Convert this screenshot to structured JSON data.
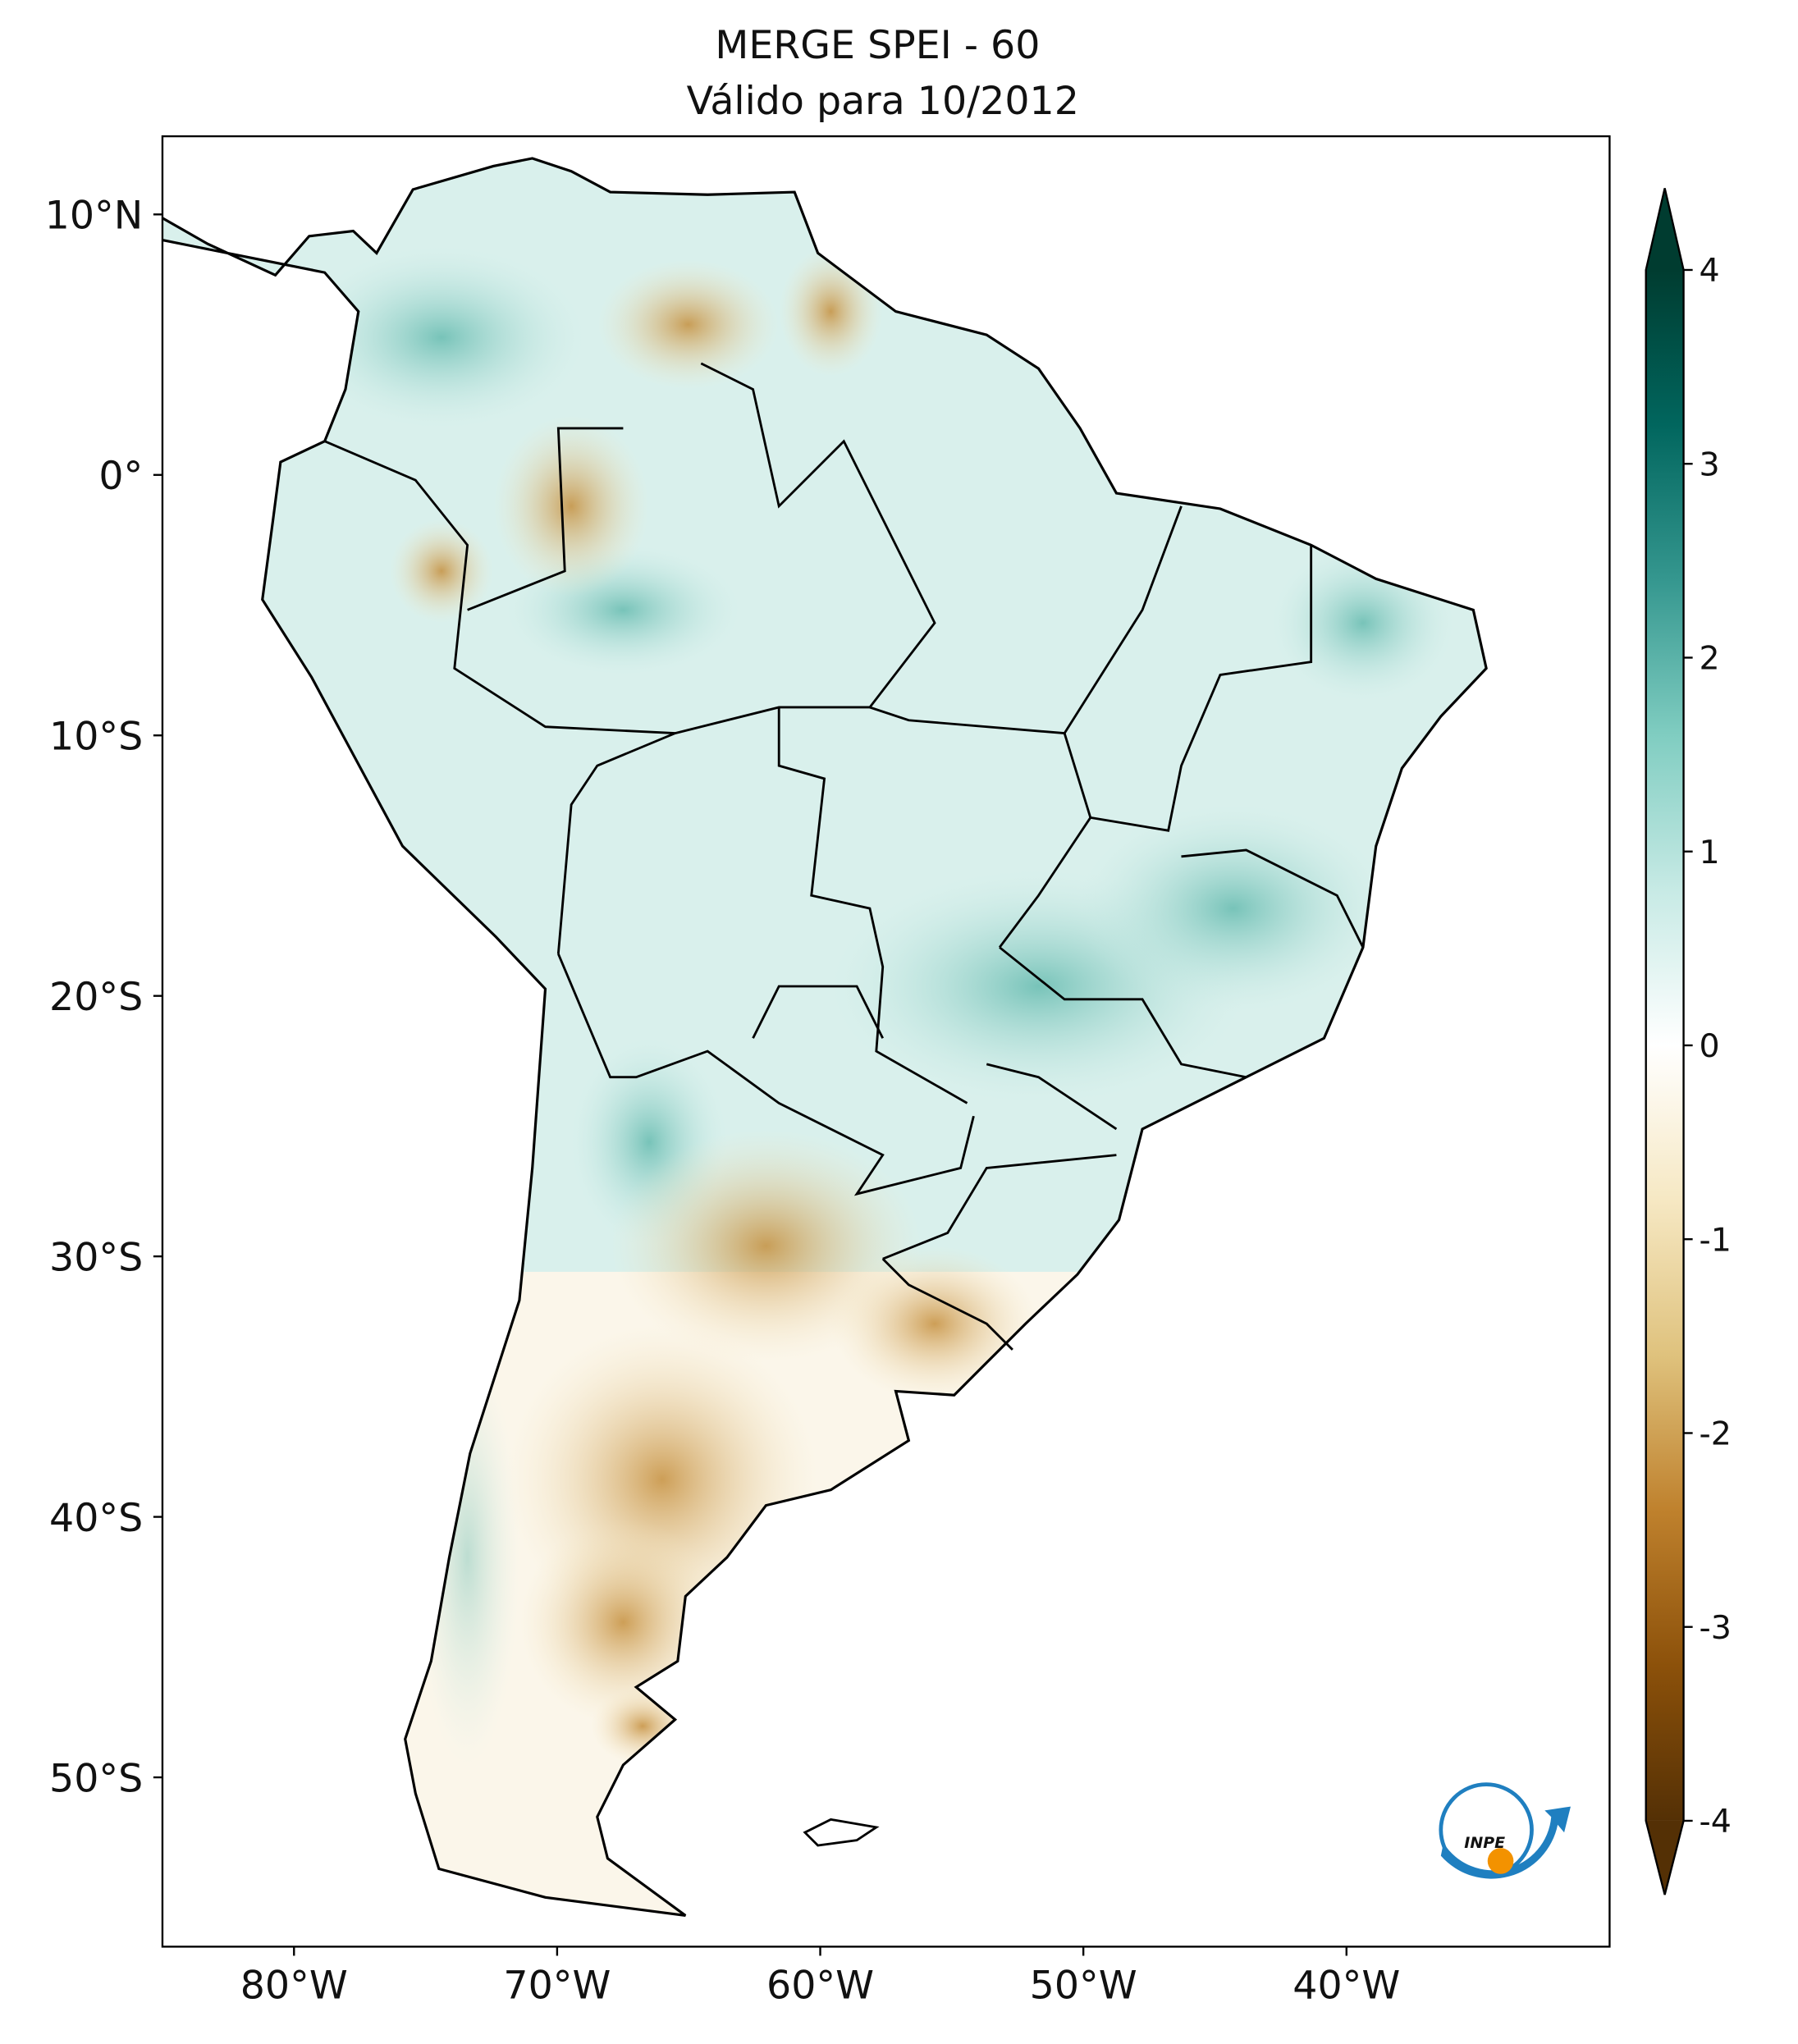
{
  "map": {
    "title": "MERGE   SPEI - 60",
    "subtitle": "Válido para 10/2012",
    "xlim": [
      -85,
      -30
    ],
    "ylim": [
      -56.5,
      13
    ],
    "xticks": [
      {
        "value": -80,
        "label": "80°W"
      },
      {
        "value": -70,
        "label": "70°W"
      },
      {
        "value": -60,
        "label": "60°W"
      },
      {
        "value": -50,
        "label": "50°W"
      },
      {
        "value": -40,
        "label": "40°W"
      }
    ],
    "yticks": [
      {
        "value": 10,
        "label": "10°N"
      },
      {
        "value": 0,
        "label": "0°"
      },
      {
        "value": -10,
        "label": "10°S"
      },
      {
        "value": -20,
        "label": "20°S"
      },
      {
        "value": -30,
        "label": "30°S"
      },
      {
        "value": -40,
        "label": "40°S"
      },
      {
        "value": -50,
        "label": "50°S"
      }
    ],
    "colorbar": {
      "lim": [
        -4,
        4
      ],
      "ticks": [
        -4,
        -3,
        -2,
        -1,
        0,
        1,
        2,
        3,
        4
      ],
      "colors": [
        "#543005",
        "#8c510a",
        "#bf812d",
        "#dfc27d",
        "#f6e8c3",
        "#ffffff",
        "#c7eae5",
        "#80cdc1",
        "#35978f",
        "#01665e",
        "#003c30"
      ]
    }
  }
}
